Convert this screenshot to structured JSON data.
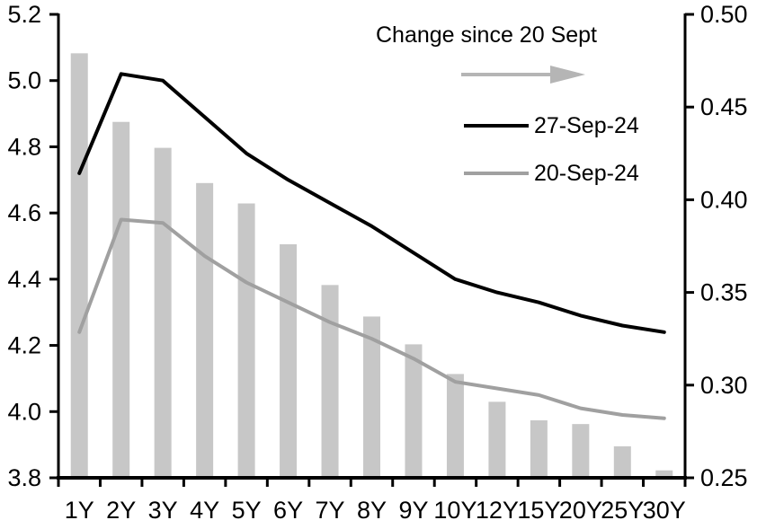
{
  "chart_data": {
    "type": "bar",
    "subtype": "bar-line-combo",
    "title": "",
    "xlabel": "",
    "ylabel_left": "",
    "ylabel_right": "",
    "grid": false,
    "legend_position": "top-right-inside",
    "categories": [
      "1Y",
      "2Y",
      "3Y",
      "4Y",
      "5Y",
      "6Y",
      "7Y",
      "8Y",
      "9Y",
      "10Y",
      "12Y",
      "15Y",
      "20Y",
      "25Y",
      "30Y"
    ],
    "series": [
      {
        "name": "Change since 20 Sept",
        "type": "bar",
        "axis": "right",
        "color": "#c7c7c7",
        "values": [
          0.479,
          0.442,
          0.428,
          0.409,
          0.398,
          0.376,
          0.354,
          0.337,
          0.322,
          0.306,
          0.291,
          0.281,
          0.279,
          0.267,
          0.254
        ]
      },
      {
        "name": "27-Sep-24",
        "type": "line",
        "axis": "left",
        "color": "#000000",
        "values": [
          4.72,
          5.02,
          5.0,
          4.89,
          4.78,
          4.7,
          4.63,
          4.56,
          4.48,
          4.4,
          4.36,
          4.33,
          4.29,
          4.26,
          4.24
        ]
      },
      {
        "name": "20-Sep-24",
        "type": "line",
        "axis": "left",
        "color": "#a0a0a0",
        "values": [
          4.24,
          4.58,
          4.57,
          4.47,
          4.39,
          4.33,
          4.27,
          4.22,
          4.16,
          4.09,
          4.07,
          4.05,
          4.01,
          3.99,
          3.98
        ]
      }
    ],
    "left_axis": {
      "min": 3.8,
      "max": 5.2,
      "ticks": [
        "5.2",
        "5.0",
        "4.8",
        "4.6",
        "4.4",
        "4.2",
        "4.0",
        "3.8"
      ]
    },
    "right_axis": {
      "min": 0.25,
      "max": 0.5,
      "ticks": [
        "0.50",
        "0.45",
        "0.40",
        "0.35",
        "0.30",
        "0.25"
      ]
    },
    "legend": {
      "title": "Change since 20 Sept",
      "arrow_color": "#b5b5b5",
      "items": [
        {
          "label": "27-Sep-24",
          "color": "#000000"
        },
        {
          "label": "20-Sep-24",
          "color": "#a0a0a0"
        }
      ]
    },
    "axis_color": "#000000"
  }
}
